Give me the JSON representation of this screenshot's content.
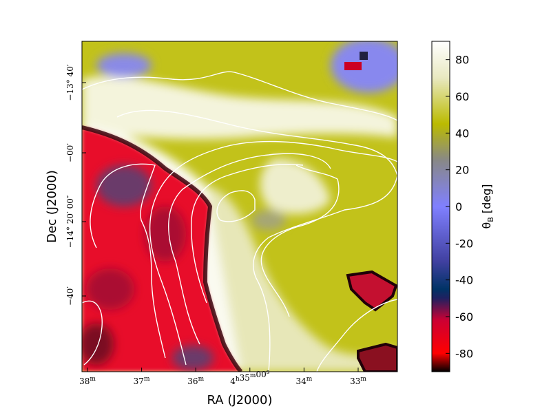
{
  "chart_data": {
    "type": "heatmap",
    "title": "",
    "xlabel": "RA (J2000)",
    "ylabel": "Dec (J2000)",
    "x_ticks": [
      {
        "label": "38",
        "sup": "m"
      },
      {
        "label": "37",
        "sup": "m"
      },
      {
        "label": "36",
        "sup": "m"
      },
      {
        "label": "4",
        "sup": "h",
        "label2": "35",
        "sup2": "m",
        "label3": "00",
        "sup3": "s"
      },
      {
        "label": "34",
        "sup": "m"
      },
      {
        "label": "33",
        "sup": "m"
      }
    ],
    "y_ticks": [
      {
        "label": "−13° 40′"
      },
      {
        "label": "−00′"
      },
      {
        "label": "−14° 20′ 00″"
      },
      {
        "label": "−40′"
      }
    ],
    "colorbar": {
      "label": "θB [deg]",
      "label_main": "θ",
      "label_sub": "B",
      "label_unit": " [deg]",
      "min": -90,
      "max": 90,
      "ticks": [
        "80",
        "60",
        "40",
        "20",
        "0",
        "-20",
        "-40",
        "-60",
        "-80"
      ],
      "tick_values": [
        80,
        60,
        40,
        20,
        0,
        -20,
        -40,
        -60,
        -80
      ],
      "colormap": [
        {
          "v": -90,
          "color": "#000000"
        },
        {
          "v": -80,
          "color": "#ff0000"
        },
        {
          "v": -62,
          "color": "#cc0033"
        },
        {
          "v": -50,
          "color": "#202060"
        },
        {
          "v": -45,
          "color": "#003366"
        },
        {
          "v": -30,
          "color": "#4040a0"
        },
        {
          "v": 0,
          "color": "#8080ff"
        },
        {
          "v": 25,
          "color": "#888888"
        },
        {
          "v": 45,
          "color": "#bbbb00"
        },
        {
          "v": 70,
          "color": "#e8e8c0"
        },
        {
          "v": 90,
          "color": "#ffffff"
        }
      ]
    },
    "regions": [
      {
        "name": "background",
        "value": 50
      },
      {
        "name": "northeast-blue",
        "value": 5
      },
      {
        "name": "northwest-blue",
        "value": 10
      },
      {
        "name": "central-white-band",
        "value": 85
      },
      {
        "name": "west-red",
        "value": -80
      },
      {
        "name": "west-dark-cores",
        "value": -60
      },
      {
        "name": "east-red-blob",
        "value": -75
      },
      {
        "name": "south-red-blob",
        "value": -80
      }
    ],
    "contours": 5
  }
}
